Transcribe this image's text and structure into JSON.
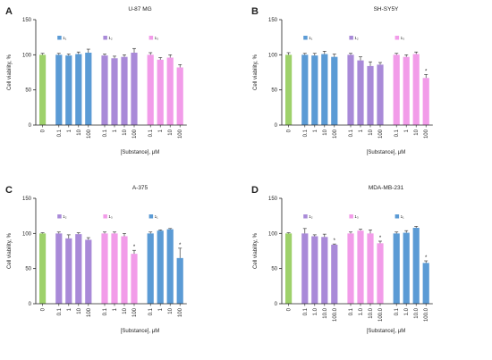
{
  "colors": {
    "control": "#9ed16b",
    "blue": "#5b9bd5",
    "purple": "#a98ad8",
    "pink": "#f29ce9",
    "axis": "#222222"
  },
  "chart_data": [
    {
      "panel": "A",
      "title": "U-87 MG",
      "type": "bar",
      "xlabel": "[Substance], μM",
      "ylabel": "Cell viability, %",
      "ylim": [
        0,
        150
      ],
      "yticks": [
        0,
        50,
        100,
        150
      ],
      "legend": [
        {
          "label": "1₁",
          "color": "blue"
        },
        {
          "label": "1₂",
          "color": "purple"
        },
        {
          "label": "1₃",
          "color": "pink"
        }
      ],
      "groups": [
        {
          "color": "control",
          "bars": [
            {
              "x": "0",
              "value": 100,
              "err": 2,
              "sig": false
            }
          ]
        },
        {
          "color": "blue",
          "bars": [
            {
              "x": "0.1",
              "value": 100,
              "err": 2,
              "sig": false
            },
            {
              "x": "1",
              "value": 99,
              "err": 2,
              "sig": false
            },
            {
              "x": "10",
              "value": 101,
              "err": 3,
              "sig": false
            },
            {
              "x": "100",
              "value": 103,
              "err": 5,
              "sig": false
            }
          ]
        },
        {
          "color": "purple",
          "bars": [
            {
              "x": "0.1",
              "value": 99,
              "err": 2,
              "sig": false
            },
            {
              "x": "1",
              "value": 95,
              "err": 3,
              "sig": false
            },
            {
              "x": "10",
              "value": 97,
              "err": 3,
              "sig": false
            },
            {
              "x": "100",
              "value": 103,
              "err": 6,
              "sig": false
            }
          ]
        },
        {
          "color": "pink",
          "bars": [
            {
              "x": "0.1",
              "value": 100,
              "err": 3,
              "sig": false
            },
            {
              "x": "1",
              "value": 93,
              "err": 3,
              "sig": false
            },
            {
              "x": "10",
              "value": 96,
              "err": 4,
              "sig": false
            },
            {
              "x": "100",
              "value": 82,
              "err": 4,
              "sig": false
            }
          ]
        }
      ]
    },
    {
      "panel": "B",
      "title": "SH-SY5Y",
      "type": "bar",
      "xlabel": "[Substance], μM",
      "ylabel": "Cell viability, %",
      "ylim": [
        0,
        150
      ],
      "yticks": [
        0,
        50,
        100,
        150
      ],
      "legend": [
        {
          "label": "1₁",
          "color": "blue"
        },
        {
          "label": "1₂",
          "color": "purple"
        },
        {
          "label": "1₃",
          "color": "pink"
        }
      ],
      "groups": [
        {
          "color": "control",
          "bars": [
            {
              "x": "0",
              "value": 100,
              "err": 3,
              "sig": false
            }
          ]
        },
        {
          "color": "blue",
          "bars": [
            {
              "x": "0.1",
              "value": 100,
              "err": 2,
              "sig": false
            },
            {
              "x": "1",
              "value": 99,
              "err": 3,
              "sig": false
            },
            {
              "x": "10",
              "value": 101,
              "err": 4,
              "sig": false
            },
            {
              "x": "100",
              "value": 97,
              "err": 4,
              "sig": false
            }
          ]
        },
        {
          "color": "purple",
          "bars": [
            {
              "x": "0.1",
              "value": 100,
              "err": 2,
              "sig": false
            },
            {
              "x": "1",
              "value": 92,
              "err": 5,
              "sig": false
            },
            {
              "x": "10",
              "value": 84,
              "err": 6,
              "sig": false
            },
            {
              "x": "100",
              "value": 86,
              "err": 3,
              "sig": false
            }
          ]
        },
        {
          "color": "pink",
          "bars": [
            {
              "x": "0.1",
              "value": 100,
              "err": 2,
              "sig": false
            },
            {
              "x": "1",
              "value": 97,
              "err": 3,
              "sig": false
            },
            {
              "x": "10",
              "value": 101,
              "err": 3,
              "sig": false
            },
            {
              "x": "100",
              "value": 67,
              "err": 5,
              "sig": true
            }
          ]
        }
      ]
    },
    {
      "panel": "C",
      "title": "A-375",
      "type": "bar",
      "xlabel": "[Substance], μM",
      "ylabel": "Cell viability, %",
      "ylim": [
        0,
        150
      ],
      "yticks": [
        0,
        50,
        100,
        150
      ],
      "legend": [
        {
          "label": "1₂",
          "color": "purple"
        },
        {
          "label": "1₃",
          "color": "pink"
        },
        {
          "label": "1₁",
          "color": "blue"
        }
      ],
      "groups": [
        {
          "color": "control",
          "bars": [
            {
              "x": "0",
              "value": 100,
              "err": 1,
              "sig": false
            }
          ]
        },
        {
          "color": "purple",
          "bars": [
            {
              "x": "0.1",
              "value": 100,
              "err": 2,
              "sig": false
            },
            {
              "x": "1",
              "value": 93,
              "err": 5,
              "sig": false
            },
            {
              "x": "10",
              "value": 99,
              "err": 2,
              "sig": false
            },
            {
              "x": "100",
              "value": 91,
              "err": 3,
              "sig": false
            }
          ]
        },
        {
          "color": "pink",
          "bars": [
            {
              "x": "0.1",
              "value": 100,
              "err": 2,
              "sig": false
            },
            {
              "x": "1",
              "value": 100,
              "err": 2,
              "sig": false
            },
            {
              "x": "10",
              "value": 96,
              "err": 4,
              "sig": false
            },
            {
              "x": "100",
              "value": 71,
              "err": 5,
              "sig": true
            }
          ]
        },
        {
          "color": "blue",
          "bars": [
            {
              "x": "0.1",
              "value": 100,
              "err": 2,
              "sig": false
            },
            {
              "x": "1",
              "value": 104,
              "err": 1,
              "sig": false
            },
            {
              "x": "10",
              "value": 106,
              "err": 1,
              "sig": false
            },
            {
              "x": "100",
              "value": 65,
              "err": 14,
              "sig": true
            }
          ]
        }
      ]
    },
    {
      "panel": "D",
      "title": "MDA-MB-231",
      "type": "bar",
      "xlabel": "[Substance], μM",
      "ylabel": "Cell viability, %",
      "ylim": [
        0,
        150
      ],
      "yticks": [
        0,
        50,
        100,
        150
      ],
      "legend": [
        {
          "label": "1₂",
          "color": "purple"
        },
        {
          "label": "1₃",
          "color": "pink"
        },
        {
          "label": "1₁",
          "color": "blue"
        }
      ],
      "groups": [
        {
          "color": "control",
          "bars": [
            {
              "x": "0",
              "value": 100,
              "err": 1,
              "sig": false
            }
          ]
        },
        {
          "color": "purple",
          "bars": [
            {
              "x": "0.1",
              "value": 100,
              "err": 7,
              "sig": false
            },
            {
              "x": "1.0",
              "value": 96,
              "err": 2,
              "sig": false
            },
            {
              "x": "10.0",
              "value": 95,
              "err": 4,
              "sig": false
            },
            {
              "x": "100.0",
              "value": 84,
              "err": 1,
              "sig": true
            }
          ]
        },
        {
          "color": "pink",
          "bars": [
            {
              "x": "0.1",
              "value": 100,
              "err": 2,
              "sig": false
            },
            {
              "x": "1.0",
              "value": 104,
              "err": 2,
              "sig": false
            },
            {
              "x": "10.0",
              "value": 100,
              "err": 5,
              "sig": false
            },
            {
              "x": "100.0",
              "value": 86,
              "err": 3,
              "sig": true
            }
          ]
        },
        {
          "color": "blue",
          "bars": [
            {
              "x": "0.1",
              "value": 100,
              "err": 2,
              "sig": false
            },
            {
              "x": "1.0",
              "value": 101,
              "err": 3,
              "sig": false
            },
            {
              "x": "10.0",
              "value": 108,
              "err": 2,
              "sig": false
            },
            {
              "x": "100.0",
              "value": 58,
              "err": 3,
              "sig": true
            }
          ]
        }
      ]
    }
  ]
}
